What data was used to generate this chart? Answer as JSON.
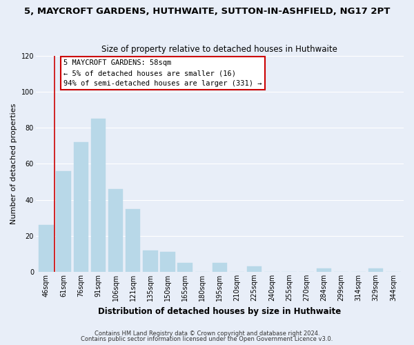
{
  "title": "5, MAYCROFT GARDENS, HUTHWAITE, SUTTON-IN-ASHFIELD, NG17 2PT",
  "subtitle": "Size of property relative to detached houses in Huthwaite",
  "xlabel": "Distribution of detached houses by size in Huthwaite",
  "ylabel": "Number of detached properties",
  "bar_labels": [
    "46sqm",
    "61sqm",
    "76sqm",
    "91sqm",
    "106sqm",
    "121sqm",
    "135sqm",
    "150sqm",
    "165sqm",
    "180sqm",
    "195sqm",
    "210sqm",
    "225sqm",
    "240sqm",
    "255sqm",
    "270sqm",
    "284sqm",
    "299sqm",
    "314sqm",
    "329sqm",
    "344sqm"
  ],
  "bar_values": [
    26,
    56,
    72,
    85,
    46,
    35,
    12,
    11,
    5,
    0,
    5,
    0,
    3,
    0,
    0,
    0,
    2,
    0,
    0,
    2,
    0
  ],
  "bar_color": "#b8d8e8",
  "highlight_color": "#cc0000",
  "ylim": [
    0,
    120
  ],
  "yticks": [
    0,
    20,
    40,
    60,
    80,
    100,
    120
  ],
  "annotation_title": "5 MAYCROFT GARDENS: 58sqm",
  "annotation_line1": "← 5% of detached houses are smaller (16)",
  "annotation_line2": "94% of semi-detached houses are larger (331) →",
  "annotation_box_facecolor": "#ffffff",
  "annotation_box_edgecolor": "#cc0000",
  "footer_line1": "Contains HM Land Registry data © Crown copyright and database right 2024.",
  "footer_line2": "Contains public sector information licensed under the Open Government Licence v3.0.",
  "background_color": "#e8eef8",
  "grid_color": "#ffffff",
  "title_fontsize": 9.5,
  "subtitle_fontsize": 8.5,
  "xlabel_fontsize": 8.5,
  "ylabel_fontsize": 8,
  "tick_fontsize": 7,
  "annotation_fontsize": 7.5,
  "footer_fontsize": 6
}
